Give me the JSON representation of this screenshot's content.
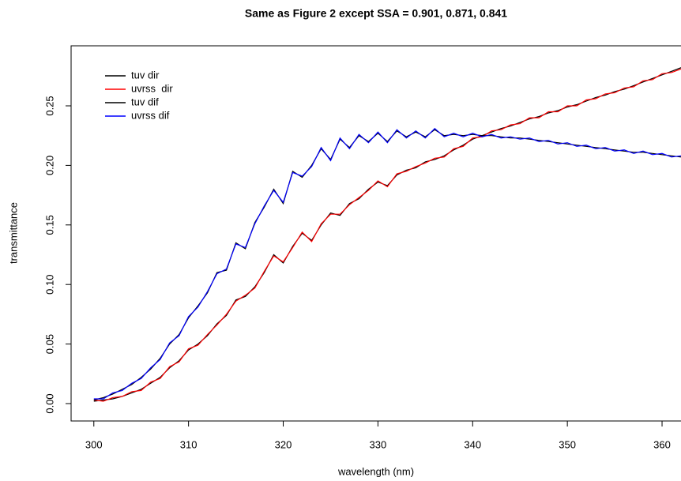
{
  "chart_data": {
    "type": "line",
    "title": "Same as Figure 2 except SSA = 0.901, 0.871, 0.841",
    "xlabel": "wavelength (nm)",
    "ylabel": "transmittance",
    "x": [
      300,
      301,
      302,
      303,
      304,
      305,
      306,
      307,
      308,
      309,
      310,
      311,
      312,
      313,
      314,
      315,
      316,
      317,
      318,
      319,
      320,
      321,
      322,
      323,
      324,
      325,
      326,
      327,
      328,
      329,
      330,
      331,
      332,
      333,
      334,
      335,
      336,
      337,
      338,
      339,
      340,
      341,
      342,
      343,
      344,
      345,
      346,
      347,
      348,
      349,
      350,
      351,
      352,
      353,
      354,
      355,
      356,
      357,
      358,
      359,
      360,
      361,
      362
    ],
    "series": [
      {
        "name": "tuv dir",
        "color": "#000000",
        "values": [
          0.002,
          0.003,
          0.004,
          0.006,
          0.009,
          0.012,
          0.017,
          0.022,
          0.03,
          0.036,
          0.045,
          0.05,
          0.057,
          0.067,
          0.074,
          0.087,
          0.09,
          0.098,
          0.11,
          0.125,
          0.118,
          0.132,
          0.143,
          0.137,
          0.15,
          0.16,
          0.158,
          0.168,
          0.172,
          0.18,
          0.186,
          0.183,
          0.192,
          0.196,
          0.198,
          0.203,
          0.205,
          0.208,
          0.213,
          0.217,
          0.222,
          0.225,
          0.228,
          0.231,
          0.233,
          0.236,
          0.239,
          0.241,
          0.244,
          0.246,
          0.249,
          0.251,
          0.254,
          0.257,
          0.259,
          0.262,
          0.264,
          0.267,
          0.27,
          0.273,
          0.276,
          0.279,
          0.282
        ]
      },
      {
        "name": "uvrss  dir",
        "color": "#ff0000",
        "values": [
          0.003,
          0.002,
          0.005,
          0.006,
          0.01,
          0.011,
          0.018,
          0.021,
          0.031,
          0.035,
          0.046,
          0.049,
          0.058,
          0.066,
          0.075,
          0.086,
          0.091,
          0.097,
          0.111,
          0.124,
          0.119,
          0.131,
          0.144,
          0.136,
          0.151,
          0.159,
          0.159,
          0.167,
          0.173,
          0.179,
          0.187,
          0.182,
          0.193,
          0.195,
          0.199,
          0.202,
          0.206,
          0.207,
          0.214,
          0.216,
          0.223,
          0.224,
          0.229,
          0.23,
          0.234,
          0.235,
          0.24,
          0.24,
          0.245,
          0.245,
          0.25,
          0.25,
          0.255,
          0.256,
          0.26,
          0.261,
          0.265,
          0.266,
          0.271,
          0.272,
          0.277,
          0.278,
          0.281
        ]
      },
      {
        "name": "tuv dif",
        "color": "#000000",
        "values": [
          0.003,
          0.005,
          0.008,
          0.012,
          0.016,
          0.022,
          0.029,
          0.038,
          0.05,
          0.058,
          0.072,
          0.082,
          0.093,
          0.11,
          0.112,
          0.135,
          0.13,
          0.152,
          0.165,
          0.18,
          0.168,
          0.195,
          0.19,
          0.2,
          0.214,
          0.205,
          0.222,
          0.215,
          0.225,
          0.22,
          0.227,
          0.22,
          0.229,
          0.224,
          0.228,
          0.224,
          0.23,
          0.225,
          0.226,
          0.225,
          0.226,
          0.225,
          0.225,
          0.224,
          0.223,
          0.223,
          0.222,
          0.221,
          0.22,
          0.219,
          0.218,
          0.217,
          0.216,
          0.215,
          0.214,
          0.213,
          0.212,
          0.211,
          0.211,
          0.21,
          0.209,
          0.208,
          0.207
        ]
      },
      {
        "name": "uvrss dif",
        "color": "#0000ff",
        "values": [
          0.004,
          0.004,
          0.009,
          0.011,
          0.017,
          0.021,
          0.03,
          0.037,
          0.051,
          0.057,
          0.073,
          0.081,
          0.094,
          0.109,
          0.113,
          0.134,
          0.131,
          0.151,
          0.166,
          0.179,
          0.169,
          0.194,
          0.191,
          0.199,
          0.215,
          0.204,
          0.223,
          0.214,
          0.226,
          0.219,
          0.228,
          0.219,
          0.23,
          0.223,
          0.229,
          0.223,
          0.231,
          0.224,
          0.227,
          0.224,
          0.227,
          0.224,
          0.226,
          0.223,
          0.224,
          0.222,
          0.223,
          0.22,
          0.221,
          0.218,
          0.219,
          0.216,
          0.217,
          0.214,
          0.215,
          0.212,
          0.213,
          0.21,
          0.212,
          0.209,
          0.21,
          0.207,
          0.208
        ]
      }
    ],
    "xlim": [
      297.6,
      362
    ],
    "ylim": [
      -0.0146,
      0.3004
    ],
    "xticks": [
      300,
      310,
      320,
      330,
      340,
      350,
      360
    ],
    "yticks": [
      {
        "value": 0,
        "label": "0.00"
      },
      {
        "value": 0.05,
        "label": "0.05"
      },
      {
        "value": 0.1,
        "label": "0.10"
      },
      {
        "value": 0.15,
        "label": "0.15"
      },
      {
        "value": 0.2,
        "label": "0.20"
      },
      {
        "value": 0.25,
        "label": "0.25"
      }
    ],
    "legend": "top-left"
  }
}
